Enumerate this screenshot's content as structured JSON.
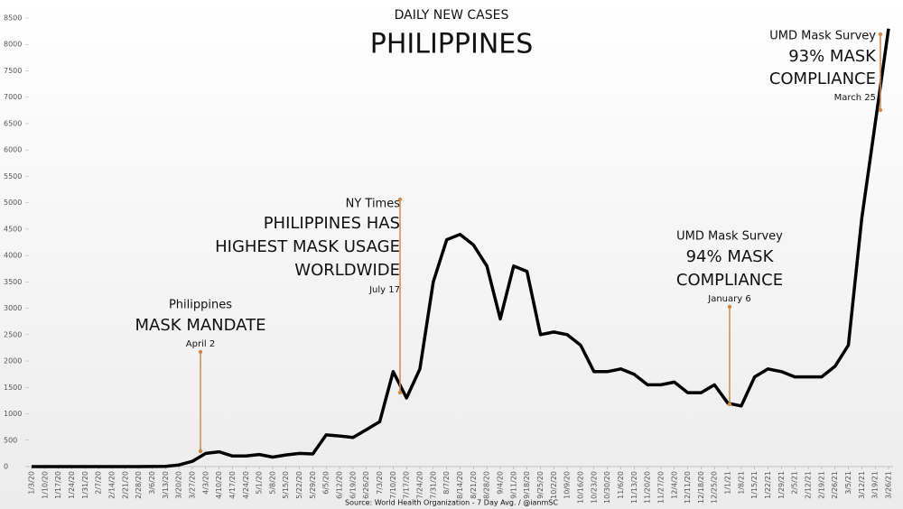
{
  "chart_data": {
    "type": "line",
    "title": "PHILIPPINES",
    "subtitle": "DAILY NEW CASES",
    "source": "Source: World Health Organization - 7 Day Avg. / @ianmSC",
    "categories": [
      "1/3/20",
      "1/10/20",
      "1/17/20",
      "1/24/20",
      "1/31/20",
      "2/7/20",
      "2/14/20",
      "2/21/20",
      "2/28/20",
      "3/6/20",
      "3/13/20",
      "3/20/20",
      "3/27/20",
      "4/3/20",
      "4/10/20",
      "4/17/20",
      "4/24/20",
      "5/1/20",
      "5/8/20",
      "5/15/20",
      "5/22/20",
      "5/29/20",
      "6/5/20",
      "6/12/20",
      "6/19/20",
      "6/26/20",
      "7/3/20",
      "7/10/20",
      "7/17/20",
      "7/24/20",
      "7/31/20",
      "8/7/20",
      "8/14/20",
      "8/21/20",
      "8/28/20",
      "9/4/20",
      "9/11/20",
      "9/18/20",
      "9/25/20",
      "10/2/20",
      "10/9/20",
      "10/16/20",
      "10/23/20",
      "10/30/20",
      "11/6/20",
      "11/13/20",
      "11/20/20",
      "11/27/20",
      "12/4/20",
      "12/11/20",
      "12/18/20",
      "12/25/20",
      "1/1/21",
      "1/8/21",
      "1/15/21",
      "1/22/21",
      "1/29/21",
      "2/5/21",
      "2/12/21",
      "2/19/21",
      "2/26/21",
      "3/5/21",
      "3/12/21",
      "3/19/21",
      "3/26/21"
    ],
    "series": [
      {
        "name": "7 Day Avg.",
        "color": "#000000",
        "values": [
          0,
          0,
          0,
          0,
          0,
          0,
          0,
          0,
          0,
          2,
          5,
          30,
          100,
          250,
          280,
          200,
          200,
          230,
          180,
          220,
          250,
          240,
          600,
          580,
          550,
          700,
          850,
          1800,
          1300,
          1850,
          3500,
          4300,
          4400,
          4200,
          3800,
          2800,
          3800,
          3700,
          2500,
          2550,
          2500,
          2300,
          1800,
          1800,
          1850,
          1750,
          1550,
          1550,
          1600,
          1400,
          1400,
          1550,
          1200,
          1150,
          1700,
          1850,
          1800,
          1700,
          1700,
          1700,
          1900,
          2300,
          4700,
          6500,
          8300
        ]
      }
    ],
    "ylim": [
      0,
      8500
    ],
    "yticks": [
      0,
      500,
      1000,
      1500,
      2000,
      2500,
      3000,
      3500,
      4000,
      4500,
      5000,
      5500,
      6000,
      6500,
      7000,
      7500,
      8000,
      8500
    ],
    "annotations": [
      {
        "lines": [
          "Philippines",
          "MASK MANDATE",
          "April 2"
        ]
      },
      {
        "lines": [
          "NY Times",
          "PHILIPPINES HAS",
          "HIGHEST MASK USAGE",
          "WORLDWIDE",
          "July 17"
        ]
      },
      {
        "lines": [
          "UMD Mask Survey",
          "94% MASK",
          "COMPLIANCE",
          "January 6"
        ]
      },
      {
        "lines": [
          "UMD Mask Survey",
          "93% MASK",
          "COMPLIANCE",
          "March 25"
        ]
      }
    ]
  }
}
